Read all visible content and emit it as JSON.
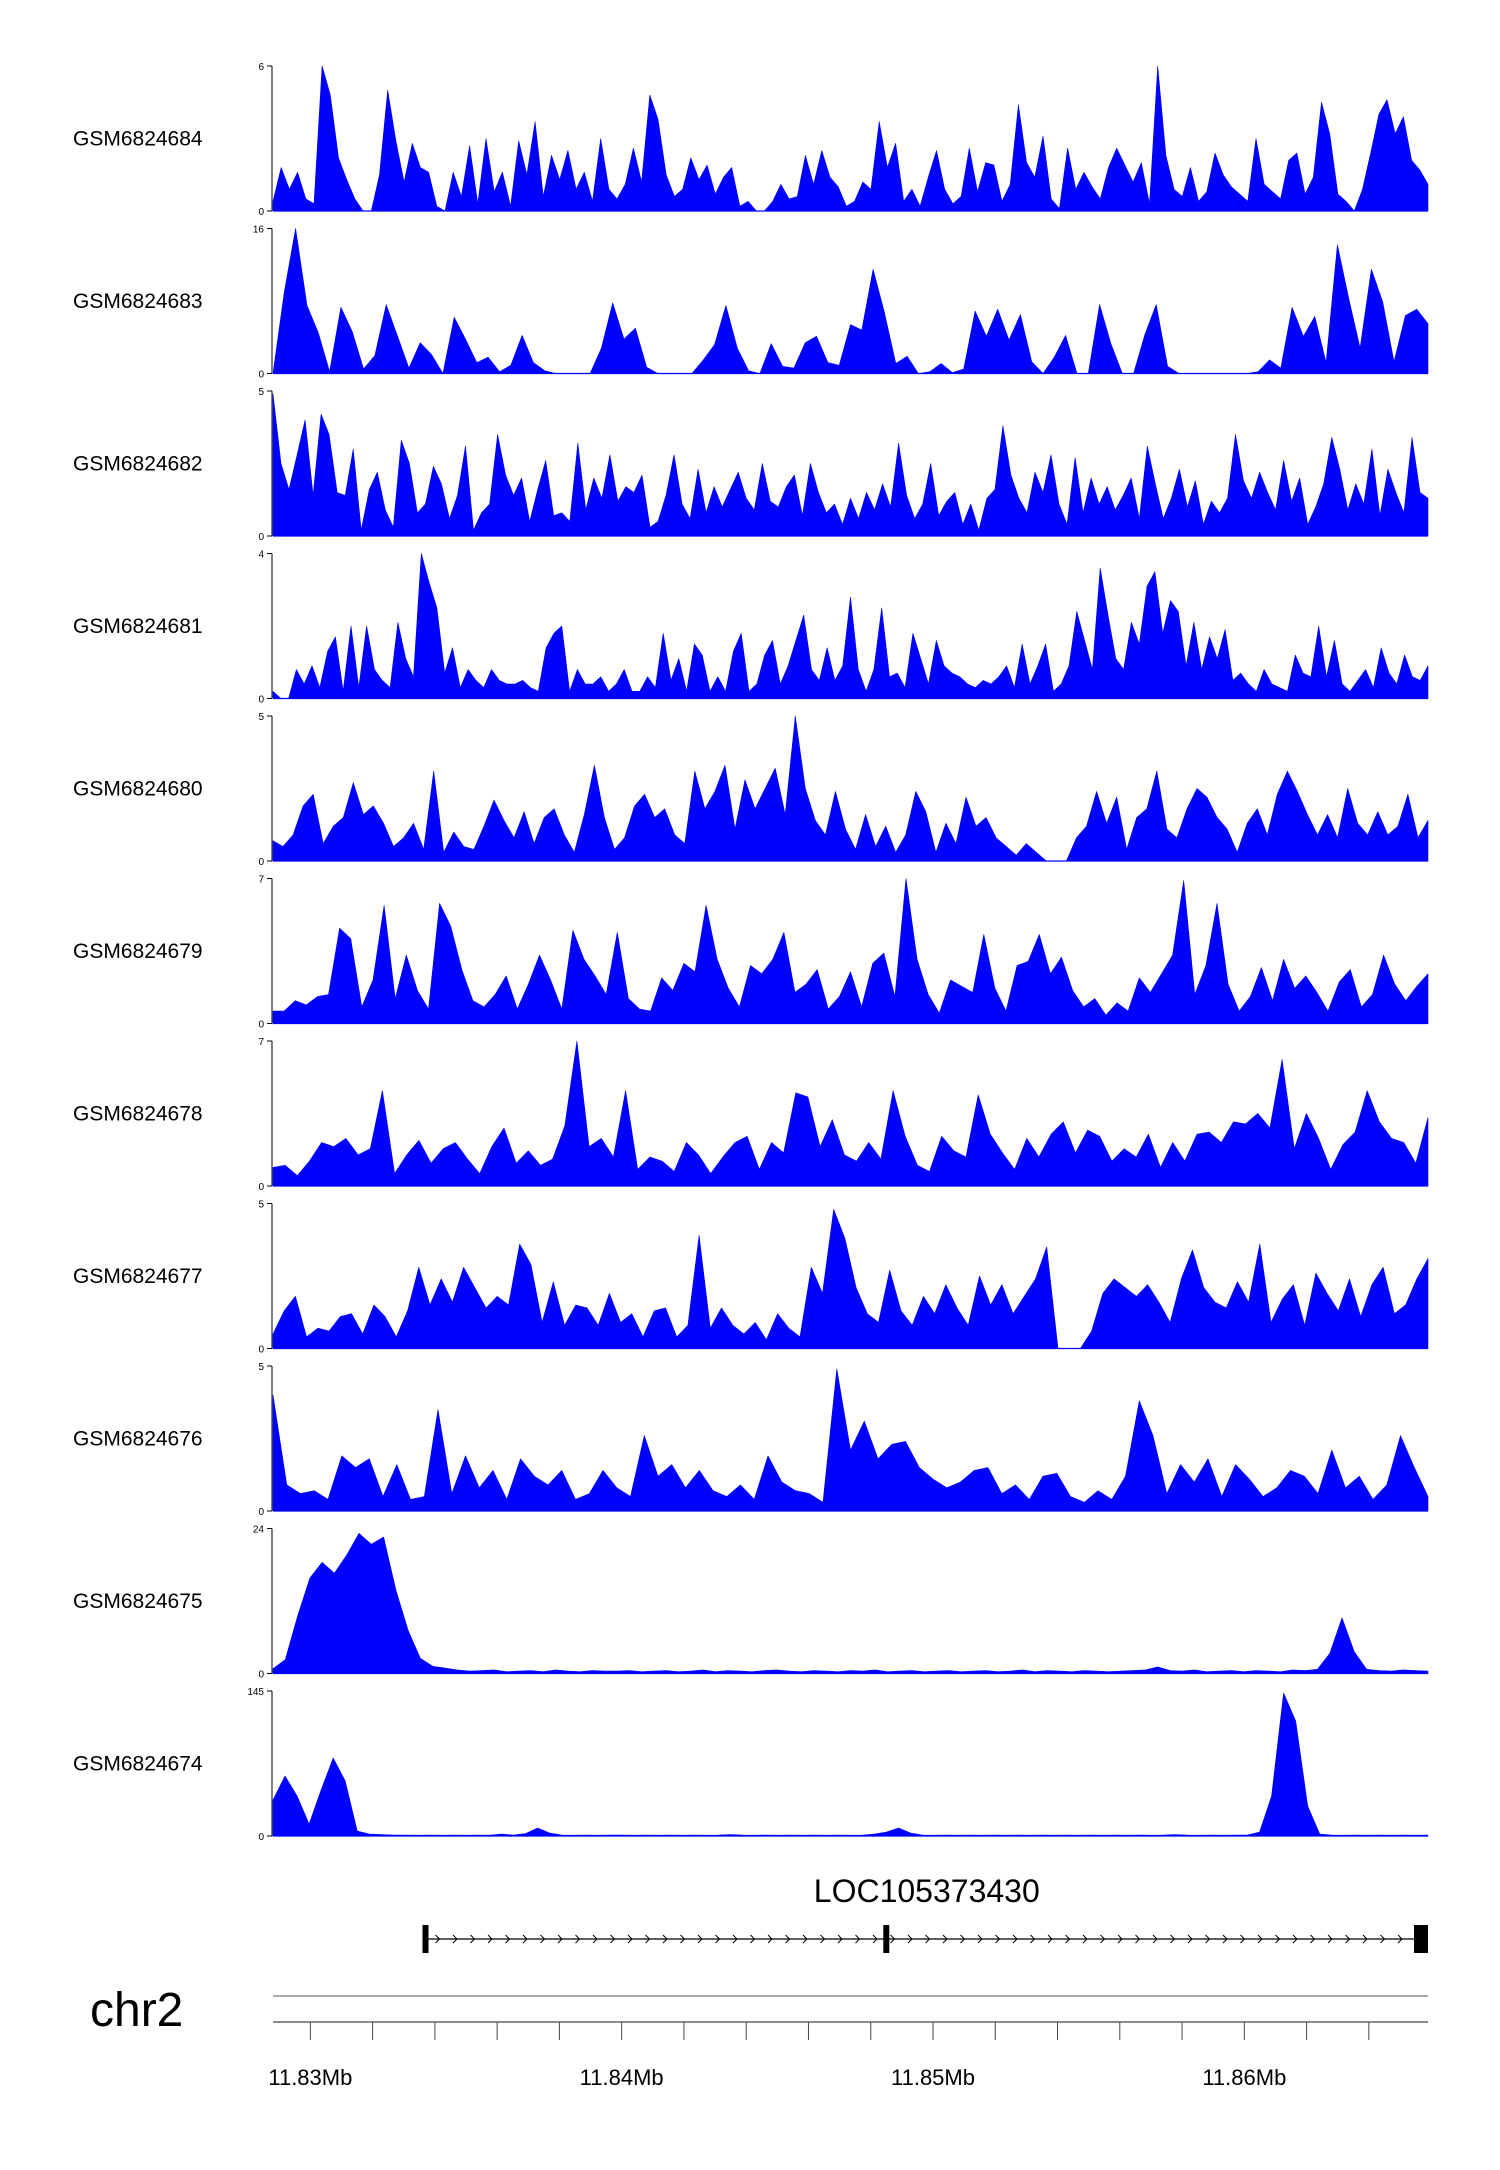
{
  "chart_data": {
    "type": "area",
    "x_range": [
      11.8288,
      11.8659
    ],
    "color": "#0000FF",
    "tracks": [
      {
        "name": "GSM6824684",
        "max": 6,
        "values": [
          0.4,
          1.8,
          0.9,
          1.6,
          0.5,
          0.3,
          6,
          4.8,
          2.2,
          1.3,
          0.5,
          0,
          0,
          1.5,
          5,
          2.9,
          1.2,
          2.8,
          1.8,
          1.6,
          0.2,
          0,
          1.6,
          0.6,
          2.7,
          0.3,
          3,
          0.8,
          1.6,
          0.2,
          2.9,
          1.5,
          3.7,
          0.6,
          2.3,
          1.3,
          2.5,
          0.9,
          1.6,
          0.4,
          3,
          0.9,
          0.5,
          1.1,
          2.6,
          1.2,
          4.8,
          3.8,
          1.5,
          0.6,
          0.9,
          2.2,
          1.3,
          1.9,
          0.7,
          1.4,
          1.8,
          0.2,
          0.4,
          0,
          0,
          0.4,
          1.1,
          0.5,
          0.6,
          2.3,
          1.1,
          2.5,
          1.4,
          1,
          0.2,
          0.4,
          1.2,
          0.9,
          3.7,
          1.8,
          2.8,
          0.4,
          0.9,
          0.2,
          1.4,
          2.5,
          0.9,
          0.3,
          0.6,
          2.6,
          0.8,
          2,
          1.9,
          0.4,
          1.1,
          4.4,
          2,
          1.4,
          3.1,
          0.5,
          0.1,
          2.6,
          0.9,
          1.6,
          1,
          0.5,
          1.8,
          2.6,
          1.9,
          1.2,
          2,
          0.3,
          6,
          2.3,
          0.9,
          0.6,
          1.8,
          0.4,
          0.8,
          2.4,
          1.5,
          1,
          0.7,
          0.4,
          3,
          1.1,
          0.8,
          0.5,
          2.1,
          2.4,
          0.7,
          1.4,
          4.5,
          3.2,
          0.7,
          0.4,
          0,
          0.9,
          2.4,
          4,
          4.6,
          3.2,
          3.9,
          2.1,
          1.7,
          1.1
        ]
      },
      {
        "name": "GSM6824683",
        "max": 16,
        "values": [
          0,
          9,
          16,
          7.5,
          4.5,
          0.2,
          7.3,
          4.6,
          0.5,
          2,
          7.6,
          4.1,
          0.6,
          3.4,
          2.1,
          0,
          6.2,
          3.8,
          1.2,
          1.8,
          0.2,
          0.9,
          4.2,
          1.2,
          0.3,
          0,
          0,
          0,
          0,
          2.8,
          7.8,
          3.8,
          5,
          0.7,
          0,
          0,
          0,
          0,
          1.5,
          3.2,
          7.5,
          2.8,
          0.3,
          0,
          3.3,
          0.8,
          0.6,
          3.4,
          4.1,
          1.2,
          0.9,
          5.4,
          4.8,
          11.5,
          6.7,
          1.1,
          1.9,
          0,
          0.2,
          1.1,
          0.1,
          0.5,
          6.9,
          4.1,
          7.1,
          3.7,
          6.5,
          1.3,
          0,
          1.8,
          4.2,
          0,
          0,
          7.6,
          3.3,
          0,
          0,
          4.3,
          7.6,
          0.8,
          0,
          0,
          0,
          0,
          0,
          0,
          0,
          0.2,
          1.5,
          0.6,
          7.3,
          4.1,
          6.3,
          1.2,
          14.2,
          8.3,
          2.8,
          11.5,
          7.9,
          1.3,
          6.4,
          7.1,
          5.5
        ]
      },
      {
        "name": "GSM6824682",
        "max": 5,
        "values": [
          4.9,
          2.5,
          1.6,
          2.8,
          4,
          1.4,
          4.2,
          3.5,
          1.5,
          1.4,
          3,
          0.2,
          1.6,
          2.2,
          0.9,
          0.3,
          3.3,
          2.5,
          0.8,
          1.1,
          2.4,
          1.8,
          0.6,
          1.4,
          3.1,
          0.2,
          0.8,
          1.1,
          3.5,
          2.1,
          1.4,
          2,
          0.5,
          1.6,
          2.6,
          0.7,
          0.8,
          0.5,
          3.2,
          0.9,
          2,
          1.3,
          2.8,
          1.2,
          1.7,
          1.5,
          2.1,
          0.3,
          0.5,
          1.4,
          2.8,
          1.1,
          0.6,
          2.3,
          0.8,
          1.7,
          1,
          1.6,
          2.2,
          1.3,
          0.9,
          2.5,
          1.2,
          1,
          1.7,
          2.1,
          0.7,
          2.5,
          1.5,
          0.8,
          1.1,
          0.4,
          1.3,
          0.6,
          1.5,
          0.9,
          1.8,
          1,
          3.2,
          1.4,
          0.6,
          1.1,
          2.5,
          0.7,
          1.2,
          1.5,
          0.4,
          1.1,
          0.2,
          1.3,
          1.6,
          3.8,
          2.1,
          1.3,
          0.8,
          2.2,
          1.5,
          2.8,
          1.1,
          0.4,
          2.7,
          0.8,
          2,
          1.1,
          1.7,
          0.9,
          1.4,
          2,
          0.6,
          3.1,
          1.8,
          0.6,
          1.3,
          2.3,
          1,
          1.9,
          0.4,
          1.2,
          0.8,
          1.3,
          3.5,
          1.9,
          1.3,
          2.2,
          1.5,
          0.9,
          2.6,
          1.2,
          2,
          0.4,
          1,
          1.8,
          3.4,
          2.3,
          0.9,
          1.8,
          1.1,
          3,
          0.7,
          2.3,
          1.5,
          0.8,
          3.4,
          1.5,
          1.3
        ]
      },
      {
        "name": "GSM6824681",
        "max": 4,
        "values": [
          0.2,
          0,
          0,
          0.8,
          0.4,
          0.9,
          0.3,
          1.3,
          1.7,
          0.2,
          2,
          0.3,
          2,
          0.8,
          0.5,
          0.3,
          2.1,
          1.1,
          0.6,
          4,
          3.2,
          2.5,
          0.7,
          1.4,
          0.3,
          0.8,
          0.5,
          0.3,
          0.8,
          0.5,
          0.4,
          0.4,
          0.5,
          0.3,
          0.2,
          1.4,
          1.8,
          2,
          0.2,
          0.8,
          0.4,
          0.4,
          0.6,
          0.2,
          0.4,
          0.8,
          0.2,
          0.2,
          0.6,
          0.3,
          1.8,
          0.5,
          1.1,
          0.2,
          1.5,
          1.2,
          0.2,
          0.6,
          0.2,
          1.3,
          1.8,
          0.2,
          0.4,
          1.2,
          1.6,
          0.4,
          0.9,
          1.6,
          2.3,
          0.8,
          0.5,
          1.4,
          0.5,
          0.9,
          2.8,
          0.8,
          0.2,
          0.8,
          2.5,
          0.6,
          0.7,
          0.3,
          1.8,
          1.1,
          0.4,
          1.6,
          0.9,
          0.7,
          0.6,
          0.4,
          0.3,
          0.5,
          0.4,
          0.6,
          0.9,
          0.3,
          1.5,
          0.4,
          0.9,
          1.5,
          0.2,
          0.4,
          0.9,
          2.4,
          1.6,
          0.8,
          3.6,
          2.3,
          1.1,
          0.8,
          2.1,
          1.5,
          3.1,
          3.5,
          1.8,
          2.7,
          2.4,
          0.9,
          2.1,
          0.8,
          1.7,
          1.1,
          1.9,
          0.5,
          0.7,
          0.4,
          0.2,
          0.8,
          0.4,
          0.3,
          0.2,
          1.2,
          0.7,
          0.6,
          2,
          0.6,
          1.6,
          0.4,
          0.2,
          0.5,
          0.8,
          0.3,
          1.4,
          0.7,
          0.4,
          1.2,
          0.6,
          0.5,
          0.9
        ]
      },
      {
        "name": "GSM6824680",
        "max": 5,
        "values": [
          0.7,
          0.5,
          0.9,
          1.9,
          2.3,
          0.6,
          1.2,
          1.5,
          2.7,
          1.6,
          1.9,
          1.3,
          0.5,
          0.8,
          1.3,
          0.4,
          3.1,
          0.3,
          1,
          0.5,
          0.4,
          1.2,
          2.1,
          1.4,
          0.8,
          1.7,
          0.6,
          1.5,
          1.8,
          0.9,
          0.3,
          1.6,
          3.3,
          1.5,
          0.4,
          0.8,
          1.9,
          2.3,
          1.5,
          1.8,
          0.9,
          0.6,
          3.1,
          1.8,
          2.4,
          3.3,
          1.1,
          2.8,
          1.8,
          2.5,
          3.2,
          1.6,
          5,
          2.5,
          1.4,
          0.9,
          2.4,
          1.1,
          0.4,
          1.6,
          0.5,
          1.2,
          0.3,
          0.9,
          2.4,
          1.7,
          0.3,
          1.3,
          0.6,
          2.2,
          1.2,
          1.5,
          0.8,
          0.5,
          0.2,
          0.6,
          0.3,
          0,
          0,
          0,
          0.8,
          1.2,
          2.4,
          1.3,
          2.2,
          0.4,
          1.5,
          1.8,
          3.1,
          1.1,
          0.8,
          1.8,
          2.5,
          2.2,
          1.5,
          1.1,
          0.3,
          1.3,
          1.8,
          0.9,
          2.3,
          3.1,
          2.4,
          1.6,
          0.9,
          1.6,
          0.8,
          2.5,
          1.3,
          0.9,
          1.7,
          0.9,
          1.2,
          2.3,
          0.8,
          1.4
        ]
      },
      {
        "name": "GSM6824679",
        "max": 7,
        "values": [
          0.6,
          0.6,
          1.1,
          0.9,
          1.3,
          1.4,
          4.6,
          4.1,
          0.8,
          2.1,
          5.7,
          1.2,
          3.3,
          1.6,
          0.7,
          5.8,
          4.7,
          2.6,
          1.1,
          0.8,
          1.4,
          2.3,
          0.7,
          1.9,
          3.3,
          2.1,
          0.7,
          4.5,
          3.1,
          2.3,
          1.4,
          4.4,
          1.2,
          0.7,
          0.6,
          2.2,
          1.6,
          2.9,
          2.5,
          5.7,
          3.1,
          1.7,
          0.8,
          2.8,
          2.4,
          3.1,
          4.4,
          1.5,
          1.9,
          2.6,
          0.7,
          1.3,
          2.5,
          0.8,
          2.9,
          3.4,
          1.3,
          7,
          3.1,
          1.4,
          0.5,
          2.1,
          1.8,
          1.5,
          4.3,
          1.7,
          0.6,
          2.8,
          3,
          4.3,
          2.4,
          3.2,
          1.6,
          0.8,
          1.2,
          0.4,
          1,
          0.6,
          2.2,
          1.5,
          2.4,
          3.3,
          6.9,
          1.4,
          2.8,
          5.8,
          1.9,
          0.6,
          1.3,
          2.7,
          1.1,
          3.1,
          1.7,
          2.3,
          1.5,
          0.6,
          2,
          2.6,
          0.8,
          1.4,
          3.3,
          1.9,
          1.1,
          1.8,
          2.4
        ]
      },
      {
        "name": "GSM6824678",
        "max": 7,
        "values": [
          0.9,
          1,
          0.5,
          1.2,
          2.1,
          1.9,
          2.3,
          1.5,
          1.8,
          4.6,
          0.6,
          1.5,
          2.2,
          1.1,
          1.8,
          2.1,
          1.3,
          0.6,
          1.9,
          2.8,
          1.1,
          1.7,
          1,
          1.3,
          2.9,
          7,
          1.9,
          2.3,
          1.4,
          4.6,
          0.8,
          1.4,
          1.2,
          0.7,
          2.1,
          1.5,
          0.6,
          1.4,
          2.1,
          2.4,
          0.8,
          2.1,
          1.6,
          4.5,
          4.3,
          1.9,
          3.2,
          1.5,
          1.2,
          2.1,
          1.3,
          4.6,
          2.4,
          1,
          0.7,
          2.4,
          1.7,
          1.4,
          4.4,
          2.5,
          1.6,
          0.8,
          2.3,
          1.4,
          2.5,
          3.1,
          1.6,
          2.7,
          2.4,
          1.2,
          1.8,
          1.4,
          2.5,
          0.9,
          2.1,
          1.2,
          2.5,
          2.6,
          2.1,
          3.1,
          3,
          3.5,
          2.8,
          6.1,
          1.8,
          3.5,
          2.3,
          0.8,
          2,
          2.6,
          4.6,
          3.1,
          2.3,
          2.1,
          1.1,
          3.3
        ]
      },
      {
        "name": "GSM6824677",
        "max": 5,
        "values": [
          0.5,
          1.3,
          1.8,
          0.4,
          0.7,
          0.6,
          1.1,
          1.2,
          0.5,
          1.5,
          1.1,
          0.4,
          1.3,
          2.8,
          1.5,
          2.4,
          1.6,
          2.8,
          2.1,
          1.4,
          1.8,
          1.5,
          3.6,
          2.9,
          0.9,
          2.3,
          0.8,
          1.5,
          1.4,
          0.8,
          1.9,
          0.9,
          1.2,
          0.4,
          1.3,
          1.4,
          0.4,
          0.8,
          3.9,
          0.7,
          1.4,
          0.8,
          0.5,
          0.9,
          0.3,
          1.2,
          0.7,
          0.4,
          2.8,
          1.9,
          4.8,
          3.8,
          2.1,
          1.2,
          0.9,
          2.7,
          1.3,
          0.8,
          1.8,
          1.2,
          2.2,
          1.4,
          0.8,
          2.5,
          1.5,
          2.2,
          1.2,
          1.8,
          2.4,
          3.5,
          0,
          0,
          0,
          0.6,
          1.9,
          2.4,
          2.1,
          1.8,
          2.2,
          1.6,
          0.9,
          2.4,
          3.4,
          2.1,
          1.6,
          1.4,
          2.3,
          1.6,
          3.6,
          0.9,
          1.7,
          2.2,
          0.8,
          2.6,
          1.9,
          1.3,
          2.4,
          1.1,
          2.2,
          2.8,
          1.2,
          1.5,
          2.4,
          3.1
        ]
      },
      {
        "name": "GSM6824676",
        "max": 5,
        "values": [
          4,
          0.9,
          0.6,
          0.7,
          0.4,
          1.9,
          1.5,
          1.8,
          0.5,
          1.6,
          0.4,
          0.5,
          3.5,
          0.6,
          1.9,
          0.8,
          1.4,
          0.4,
          1.8,
          1.2,
          0.9,
          1.4,
          0.4,
          0.6,
          1.4,
          0.8,
          0.5,
          2.6,
          1.2,
          1.6,
          0.8,
          1.4,
          0.7,
          0.5,
          0.9,
          0.4,
          1.9,
          1,
          0.7,
          0.6,
          0.3,
          4.9,
          2.1,
          3.1,
          1.8,
          2.3,
          2.4,
          1.5,
          1.1,
          0.8,
          1,
          1.4,
          1.5,
          0.6,
          0.9,
          0.4,
          1.2,
          1.3,
          0.5,
          0.3,
          0.7,
          0.4,
          1.2,
          3.8,
          2.6,
          0.6,
          1.6,
          1,
          1.8,
          0.5,
          1.6,
          1.1,
          0.5,
          0.8,
          1.4,
          1.2,
          0.6,
          2.1,
          0.8,
          1.2,
          0.4,
          0.9,
          2.6,
          1.5,
          0.5
        ]
      },
      {
        "name": "GSM6824675",
        "max": 24,
        "values": [
          0.8,
          2.3,
          9.5,
          15.8,
          18.4,
          16.6,
          19.6,
          23.2,
          21.4,
          22.6,
          13.8,
          7.1,
          2.5,
          1.2,
          0.9,
          0.6,
          0.4,
          0.5,
          0.6,
          0.3,
          0.4,
          0.5,
          0.3,
          0.6,
          0.4,
          0.3,
          0.5,
          0.4,
          0.4,
          0.5,
          0.3,
          0.4,
          0.5,
          0.3,
          0.4,
          0.6,
          0.3,
          0.5,
          0.4,
          0.3,
          0.5,
          0.6,
          0.4,
          0.3,
          0.5,
          0.4,
          0.3,
          0.5,
          0.4,
          0.6,
          0.3,
          0.4,
          0.5,
          0.3,
          0.4,
          0.5,
          0.3,
          0.4,
          0.5,
          0.3,
          0.4,
          0.6,
          0.3,
          0.5,
          0.4,
          0.3,
          0.5,
          0.4,
          0.3,
          0.4,
          0.5,
          0.6,
          1.1,
          0.5,
          0.4,
          0.6,
          0.3,
          0.4,
          0.5,
          0.3,
          0.5,
          0.4,
          0.3,
          0.6,
          0.5,
          0.7,
          3.3,
          9.2,
          3.6,
          0.7,
          0.5,
          0.4,
          0.6,
          0.5,
          0.4
        ]
      },
      {
        "name": "GSM6824674",
        "max": 145,
        "values": [
          36,
          60,
          40,
          12,
          46,
          78,
          55,
          5,
          2,
          1.5,
          1,
          1,
          0.8,
          1,
          0.8,
          1,
          0.8,
          1,
          0.8,
          2,
          1,
          2.5,
          8,
          3,
          1,
          0.8,
          1,
          0.8,
          1,
          1,
          0.8,
          1,
          0.8,
          1,
          0.8,
          1,
          0.8,
          1,
          1.5,
          1,
          0.8,
          1,
          0.8,
          1,
          0.8,
          1,
          0.8,
          1,
          0.8,
          1,
          2,
          4,
          8,
          3,
          1,
          0.8,
          1,
          0.8,
          1,
          0.8,
          1,
          0.8,
          1,
          0.8,
          1,
          0.8,
          1,
          0.8,
          1,
          0.8,
          1,
          0.8,
          1,
          0.8,
          1,
          1.5,
          1,
          0.8,
          1,
          0.8,
          1,
          1,
          4,
          40,
          143,
          115,
          30,
          2,
          1,
          0.8,
          1,
          0.8,
          1,
          0.8,
          1,
          0.8,
          1
        ]
      }
    ],
    "gene": {
      "name": "LOC105373430",
      "start": 11.8337,
      "end": 11.8659,
      "exons": [
        11.8337,
        11.8485,
        11.8659
      ],
      "strand": "+"
    },
    "chromosome": "chr2",
    "axis": {
      "major_ticks": [
        11.83,
        11.84,
        11.85,
        11.86
      ],
      "labels": [
        "11.83Mb",
        "11.84Mb",
        "11.85Mb",
        "11.86Mb"
      ],
      "minor_step": 0.002
    }
  }
}
